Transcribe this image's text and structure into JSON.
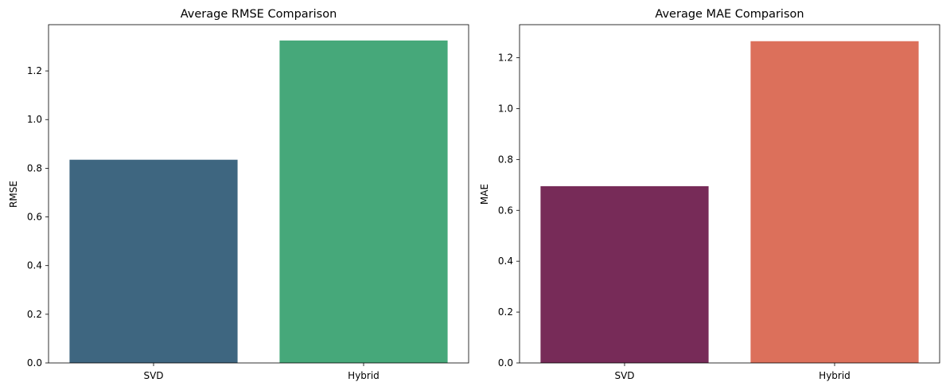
{
  "chart_data": [
    {
      "type": "bar",
      "title": "Average RMSE Comparison",
      "xlabel": "",
      "ylabel": "RMSE",
      "categories": [
        "SVD",
        "Hybrid"
      ],
      "values": [
        0.835,
        1.325
      ],
      "colors": [
        "#3e6680",
        "#46a87a"
      ],
      "ylim": [
        0,
        1.39
      ],
      "yticks": [
        0.0,
        0.2,
        0.4,
        0.6,
        0.8,
        1.0,
        1.2
      ],
      "ytick_labels": [
        "0.0",
        "0.2",
        "0.4",
        "0.6",
        "0.8",
        "1.0",
        "1.2"
      ],
      "grid": false,
      "legend": "none"
    },
    {
      "type": "bar",
      "title": "Average MAE Comparison",
      "xlabel": "",
      "ylabel": "MAE",
      "categories": [
        "SVD",
        "Hybrid"
      ],
      "values": [
        0.695,
        1.265
      ],
      "colors": [
        "#772b58",
        "#dc705b"
      ],
      "ylim": [
        0,
        1.33
      ],
      "yticks": [
        0.0,
        0.2,
        0.4,
        0.6,
        0.8,
        1.0,
        1.2
      ],
      "ytick_labels": [
        "0.0",
        "0.2",
        "0.4",
        "0.6",
        "0.8",
        "1.0",
        "1.2"
      ],
      "grid": false,
      "legend": "none"
    }
  ]
}
